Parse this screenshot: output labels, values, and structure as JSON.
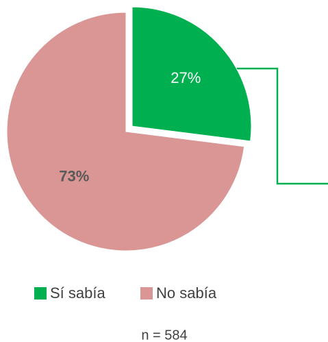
{
  "chart_data": {
    "type": "pie",
    "categories": [
      "Sí sabía",
      "No sabía"
    ],
    "values": [
      27,
      73
    ],
    "value_labels": [
      "27%",
      "73%"
    ],
    "colors": [
      "#00b050",
      "#d99694"
    ],
    "annotation": "n = 584",
    "legend": "bottom"
  }
}
